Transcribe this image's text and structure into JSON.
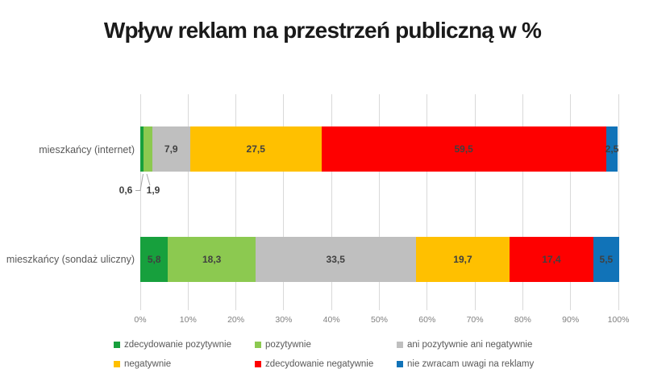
{
  "title": "Wpływ reklam na przestrzeń publiczną w %",
  "chart_data": {
    "type": "bar",
    "variant": "horizontal-stacked-100",
    "unit": "%",
    "title": "Wpływ reklam na przestrzeń publiczną w %",
    "categories": [
      "mieszkańcy (internet)",
      "mieszkańcy (sondaż uliczny)"
    ],
    "series": [
      {
        "name": "zdecydowanie pozytywnie",
        "color": "#17A03D",
        "values": [
          0.6,
          5.8
        ]
      },
      {
        "name": "pozytywnie",
        "color": "#8CC950",
        "values": [
          1.9,
          18.3
        ]
      },
      {
        "name": "ani pozytywnie ani negatywnie",
        "color": "#BFBFBF",
        "values": [
          7.9,
          33.5
        ]
      },
      {
        "name": "negatywnie",
        "color": "#FFC000",
        "values": [
          27.5,
          19.7
        ]
      },
      {
        "name": "zdecydowanie negatywnie",
        "color": "#FE0000",
        "values": [
          59.5,
          17.4
        ]
      },
      {
        "name": "nie zwracam uwagi na reklamy",
        "color": "#1173B8",
        "values": [
          2.5,
          5.5
        ]
      }
    ],
    "value_labels": [
      [
        "0,6",
        "1,9",
        "7,9",
        "27,5",
        "59,5",
        "2,5"
      ],
      [
        "5,8",
        "18,3",
        "33,5",
        "19,7",
        "17,4",
        "5,5"
      ]
    ],
    "label_placement": [
      [
        "callout-below",
        "callout-below",
        "inside",
        "inside",
        "inside",
        "inside"
      ],
      [
        "inside",
        "inside",
        "inside",
        "inside",
        "inside",
        "inside"
      ]
    ],
    "x_axis": {
      "min": 0,
      "max": 100,
      "ticks": [
        "0%",
        "10%",
        "20%",
        "30%",
        "40%",
        "50%",
        "60%",
        "70%",
        "80%",
        "90%",
        "100%"
      ]
    },
    "grid": true,
    "legend_position": "bottom",
    "legend_rows": 2
  }
}
